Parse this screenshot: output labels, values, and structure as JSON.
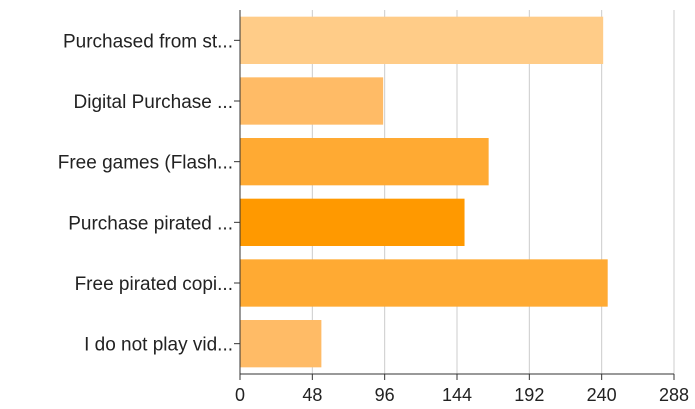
{
  "chart_data": {
    "type": "bar",
    "orientation": "horizontal",
    "title": "",
    "xlabel": "",
    "ylabel": "",
    "categories": [
      "Purchased from st...",
      "Digital Purchase ...",
      "Free games (Flash...",
      "Purchase pirated ...",
      "Free pirated copi...",
      "I do not play vid..."
    ],
    "values": [
      241,
      95,
      165,
      149,
      244,
      54
    ],
    "colors": [
      "#ffcc88",
      "#ffbb66",
      "#ffaa33",
      "#ff9900",
      "#ffaa33",
      "#ffbb66"
    ],
    "xlim": [
      0,
      288
    ],
    "xticks": [
      "0",
      "48",
      "96",
      "144",
      "192",
      "240",
      "288"
    ],
    "grid": true,
    "legend": "none"
  }
}
